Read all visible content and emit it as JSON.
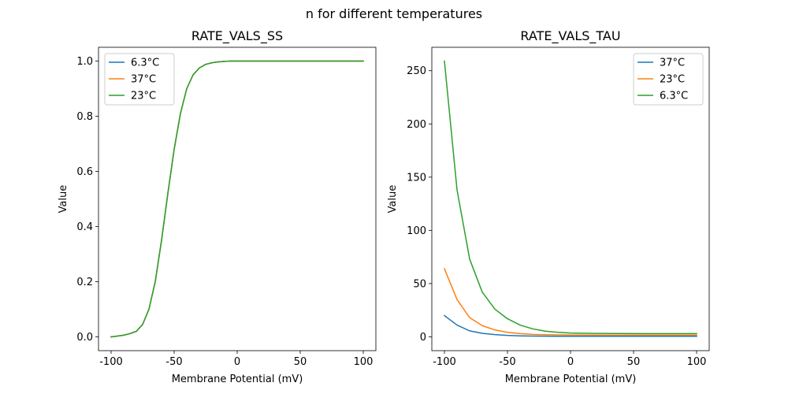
{
  "figure": {
    "title": "n for different temperatures"
  },
  "chart_data": [
    {
      "type": "line",
      "title": "RATE_VALS_SS",
      "xlabel": "Membrane Potential (mV)",
      "ylabel": "Value",
      "xlim": [
        -110,
        110
      ],
      "ylim": [
        -0.05,
        1.05
      ],
      "xticks": [
        -100,
        -50,
        0,
        50,
        100
      ],
      "yticks": [
        0.0,
        0.2,
        0.4,
        0.6,
        0.8,
        1.0
      ],
      "ytick_labels": [
        "0.0",
        "0.2",
        "0.4",
        "0.6",
        "0.8",
        "1.0"
      ],
      "legend_position": "upper-left",
      "x": [
        -100,
        -95,
        -90,
        -85,
        -80,
        -75,
        -70,
        -65,
        -60,
        -55,
        -50,
        -45,
        -40,
        -35,
        -30,
        -25,
        -20,
        -15,
        -10,
        -5,
        0,
        10,
        20,
        30,
        40,
        50,
        60,
        70,
        80,
        90,
        100
      ],
      "series": [
        {
          "name": "6.3°C",
          "color": "#1f77b4",
          "values": [
            0.0,
            0.003,
            0.006,
            0.012,
            0.02,
            0.045,
            0.1,
            0.2,
            0.35,
            0.52,
            0.68,
            0.81,
            0.9,
            0.95,
            0.975,
            0.988,
            0.994,
            0.997,
            0.999,
            1.0,
            1.0,
            1.0,
            1.0,
            1.0,
            1.0,
            1.0,
            1.0,
            1.0,
            1.0,
            1.0,
            1.0
          ]
        },
        {
          "name": "37°C",
          "color": "#ff7f0e",
          "values": [
            0.0,
            0.003,
            0.006,
            0.012,
            0.02,
            0.045,
            0.1,
            0.2,
            0.35,
            0.52,
            0.68,
            0.81,
            0.9,
            0.95,
            0.975,
            0.988,
            0.994,
            0.997,
            0.999,
            1.0,
            1.0,
            1.0,
            1.0,
            1.0,
            1.0,
            1.0,
            1.0,
            1.0,
            1.0,
            1.0,
            1.0
          ]
        },
        {
          "name": "23°C",
          "color": "#2ca02c",
          "values": [
            0.0,
            0.003,
            0.006,
            0.012,
            0.02,
            0.045,
            0.1,
            0.2,
            0.35,
            0.52,
            0.68,
            0.81,
            0.9,
            0.95,
            0.975,
            0.988,
            0.994,
            0.997,
            0.999,
            1.0,
            1.0,
            1.0,
            1.0,
            1.0,
            1.0,
            1.0,
            1.0,
            1.0,
            1.0,
            1.0,
            1.0
          ]
        }
      ]
    },
    {
      "type": "line",
      "title": "RATE_VALS_TAU",
      "xlabel": "Membrane Potential (mV)",
      "ylabel": "Value",
      "xlim": [
        -110,
        110
      ],
      "ylim": [
        -13,
        272
      ],
      "xticks": [
        -100,
        -50,
        0,
        50,
        100
      ],
      "yticks": [
        0,
        50,
        100,
        150,
        200,
        250
      ],
      "ytick_labels": [
        "0",
        "50",
        "100",
        "150",
        "200",
        "250"
      ],
      "legend_position": "upper-right",
      "x": [
        -100,
        -90,
        -80,
        -70,
        -60,
        -50,
        -40,
        -30,
        -20,
        -10,
        0,
        20,
        40,
        60,
        80,
        100
      ],
      "series": [
        {
          "name": "37°C",
          "color": "#1f77b4",
          "values": [
            20,
            11,
            5.6,
            3.3,
            2.1,
            1.3,
            0.9,
            0.7,
            0.6,
            0.55,
            0.5,
            0.5,
            0.5,
            0.5,
            0.5,
            0.5
          ]
        },
        {
          "name": "23°C",
          "color": "#ff7f0e",
          "values": [
            64,
            35,
            18,
            10.5,
            6.5,
            4.2,
            3,
            2.3,
            2,
            1.8,
            1.7,
            1.6,
            1.6,
            1.6,
            1.6,
            1.6
          ]
        },
        {
          "name": "6.3°C",
          "color": "#2ca02c",
          "values": [
            259,
            138,
            73,
            42,
            26,
            17,
            11,
            7.5,
            5.3,
            4.2,
            3.6,
            3.2,
            3.1,
            3.0,
            3.0,
            3.0
          ]
        }
      ]
    }
  ]
}
